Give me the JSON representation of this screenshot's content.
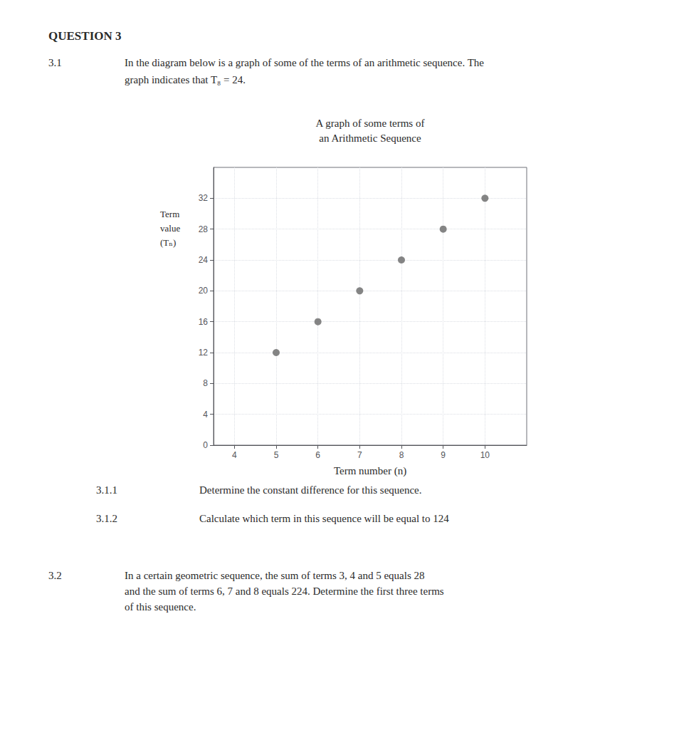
{
  "chart_data": {
    "type": "scatter",
    "title": "A graph of some terms of\nan Arithmetic Sequence",
    "x": [
      5,
      6,
      7,
      8,
      9,
      10
    ],
    "values": [
      12,
      16,
      20,
      24,
      28,
      32
    ],
    "color": "#666666",
    "xlabel": "Term number (n)",
    "ylabel": "Term\nvalue\n(Tₙ)",
    "xlim": [
      3.5,
      11.0
    ],
    "ylim": [
      0,
      36
    ],
    "xticks": [
      4,
      5,
      6,
      7,
      8,
      9,
      10
    ],
    "yticks": [
      0,
      4,
      8,
      12,
      16,
      20,
      24,
      28,
      32
    ],
    "grid": true,
    "annotations": [
      "QUESTION 3",
      "3.1",
      "In the diagram below is a graph of some of the terms of an arithmetic sequence. The",
      "graph indicates that T₈ = 24.",
      "3.1.1",
      "Determine the constant difference for this sequence.",
      "3.1.2",
      "Calculate which term in this sequence will be equal to 124",
      "3.2",
      "In a certain geometric sequence, the sum of terms 3, 4 and 5 equals 28",
      "and the sum of terms 6, 7 and 8 equals 224. Determine the first three terms",
      "of this sequence."
    ]
  }
}
